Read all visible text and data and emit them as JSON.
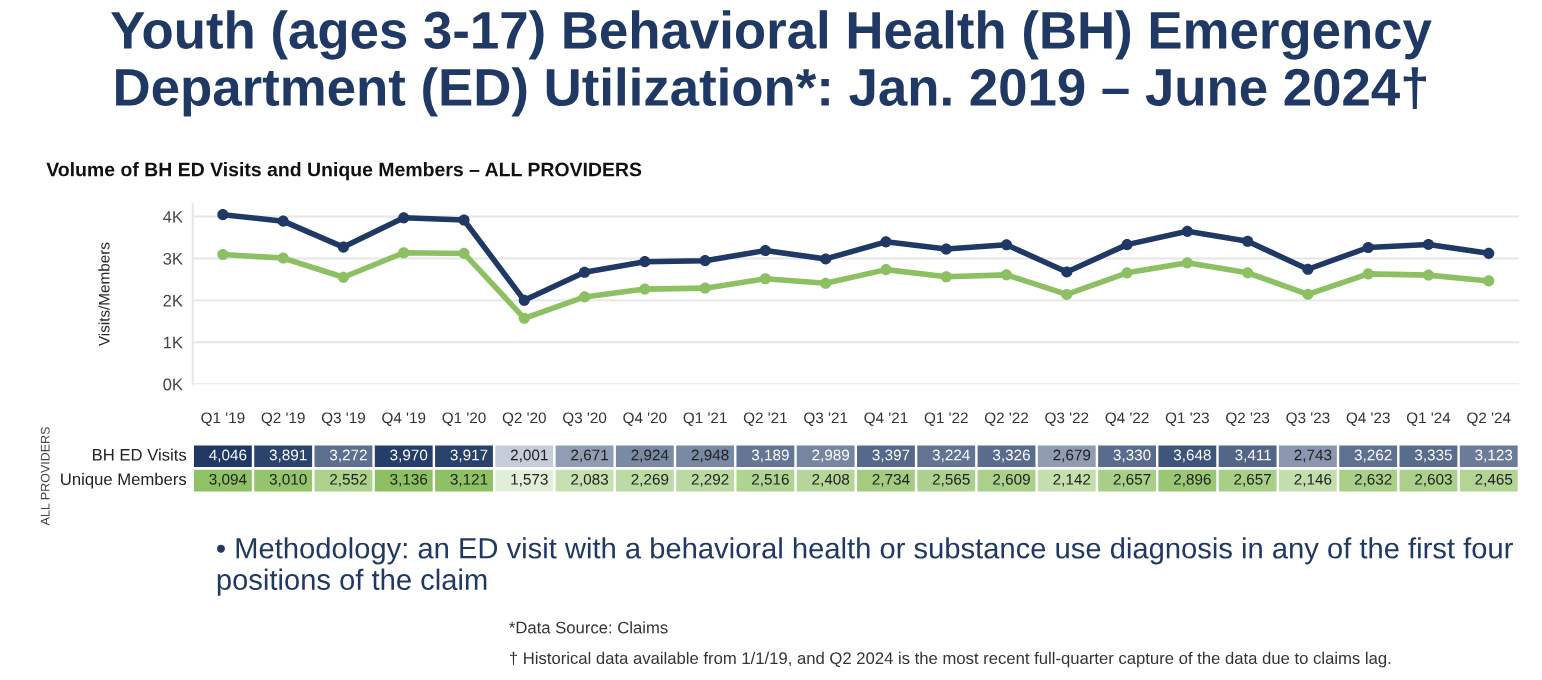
{
  "chart_data": {
    "type": "line",
    "title": "Youth (ages 3-17) Behavioral Health (BH) Emergency Department (ED) Utilization*: Jan. 2019 – June 2024†",
    "subtitle": "Volume of BH ED Visits and Unique Members – ALL PROVIDERS",
    "ylabel": "Visits/Members",
    "categories": [
      "Q1 '19",
      "Q2 '19",
      "Q3 '19",
      "Q4 '19",
      "Q1 '20",
      "Q2 '20",
      "Q3 '20",
      "Q4 '20",
      "Q1 '21",
      "Q2 '21",
      "Q3 '21",
      "Q4 '21",
      "Q1 '22",
      "Q2 '22",
      "Q3 '22",
      "Q4 '22",
      "Q1 '23",
      "Q2 '23",
      "Q3 '23",
      "Q4 '23",
      "Q1 '24",
      "Q2 '24"
    ],
    "series": [
      {
        "name": "BH ED Visits",
        "color": "#1f3864",
        "values": [
          4046,
          3891,
          3272,
          3970,
          3917,
          2001,
          2671,
          2924,
          2948,
          3189,
          2989,
          3397,
          3224,
          3326,
          2679,
          3330,
          3648,
          3411,
          2743,
          3262,
          3335,
          3123
        ],
        "value_labels": [
          "4,046",
          "3,891",
          "3,272",
          "3,970",
          "3,917",
          "2,001",
          "2,671",
          "2,924",
          "2,948",
          "3,189",
          "2,989",
          "3,397",
          "3,224",
          "3,326",
          "2,679",
          "3,330",
          "3,648",
          "3,411",
          "2,743",
          "3,262",
          "3,335",
          "3,123"
        ]
      },
      {
        "name": "Unique Members",
        "color": "#8dc063",
        "values": [
          3094,
          3010,
          2552,
          3136,
          3121,
          1573,
          2083,
          2269,
          2292,
          2516,
          2408,
          2734,
          2565,
          2609,
          2142,
          2657,
          2896,
          2657,
          2146,
          2632,
          2603,
          2465
        ],
        "value_labels": [
          "3,094",
          "3,010",
          "2,552",
          "3,136",
          "3,121",
          "1,573",
          "2,083",
          "2,269",
          "2,292",
          "2,516",
          "2,408",
          "2,734",
          "2,565",
          "2,609",
          "2,142",
          "2,657",
          "2,896",
          "2,657",
          "2,146",
          "2,632",
          "2,603",
          "2,465"
        ]
      }
    ],
    "ylim": [
      0,
      4300
    ],
    "yticks": [
      {
        "value": 0,
        "label": "0K"
      },
      {
        "value": 1000,
        "label": "1K"
      },
      {
        "value": 2000,
        "label": "2K"
      },
      {
        "value": 3000,
        "label": "3K"
      },
      {
        "value": 4000,
        "label": "4K"
      }
    ],
    "grid": "y",
    "marker": "circle",
    "line_style": "solid",
    "legend": "left",
    "annotations": [
      "ALL PROVIDERS",
      "• Methodology: an ED visit with a behavioral health or substance use diagnosis in any of the first four positions of the claim",
      "*Data Source: Claims",
      "† Historical data available from 1/1/19, and Q2 2024 is the most recent full-quarter capture of the data due to claims lag."
    ]
  }
}
